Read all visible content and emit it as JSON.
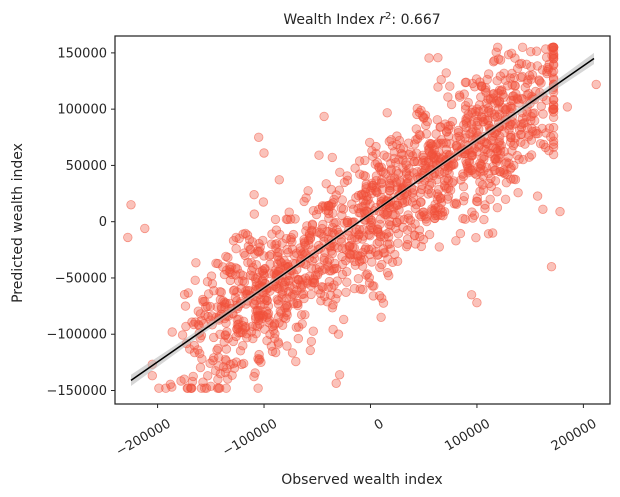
{
  "chart_data": {
    "type": "scatter",
    "title_prefix": "Wealth Index ",
    "title_r": "r",
    "title_exp": "2",
    "title_suffix": ": 0.667",
    "xlabel": "Observed wealth index",
    "ylabel": "Predicted wealth index",
    "xlim": [
      -240000,
      225000
    ],
    "ylim": [
      -162000,
      165000
    ],
    "xticks": [
      -200000,
      -100000,
      0,
      100000,
      200000
    ],
    "xtick_labels": [
      "−200000",
      "−100000",
      "0",
      "100000",
      "200000"
    ],
    "yticks": [
      -150000,
      -100000,
      -50000,
      0,
      50000,
      100000,
      150000
    ],
    "ytick_labels": [
      "−150000",
      "−100000",
      "−50000",
      "0",
      "50000",
      "100000",
      "150000"
    ],
    "point_color": "#f0503a",
    "fit_color": "#000000",
    "ci_color": "#bbbbbb",
    "fit_line": {
      "x": [
        -225000,
        210000
      ],
      "y": [
        -141000,
        145000
      ],
      "ci_halfwidth_ends": 5000,
      "ci_halfwidth_center": 1500
    },
    "n_points": 1500,
    "approx_slope": 0.66,
    "approx_intercept": 3000,
    "approx_residual_sd": 32000,
    "outliers": [
      {
        "x": -225000,
        "y": 15000
      },
      {
        "x": -228000,
        "y": -14000
      },
      {
        "x": -212000,
        "y": -6000
      },
      {
        "x": 212000,
        "y": 122000
      },
      {
        "x": 185000,
        "y": 102000
      },
      {
        "x": 178000,
        "y": 9000
      },
      {
        "x": 170000,
        "y": -40000
      },
      {
        "x": 162000,
        "y": 11000
      },
      {
        "x": 95000,
        "y": -65000
      },
      {
        "x": 100000,
        "y": -72000
      },
      {
        "x": 168000,
        "y": 140000
      },
      {
        "x": 140000,
        "y": 140000
      },
      {
        "x": -105000,
        "y": 75000
      },
      {
        "x": -100000,
        "y": 61000
      },
      {
        "x": 10000,
        "y": -85000
      },
      {
        "x": -30000,
        "y": -100000
      },
      {
        "x": -175000,
        "y": -140000
      }
    ],
    "grid": false,
    "legend": "none"
  }
}
